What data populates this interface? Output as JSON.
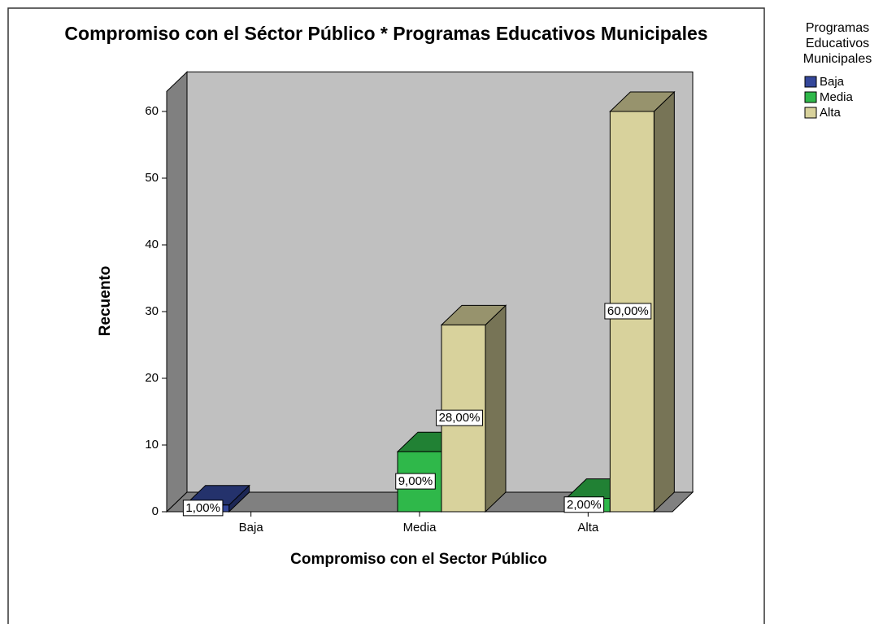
{
  "chart_data": {
    "type": "bar3d",
    "title": "Compromiso con el Séctor Público * Programas Educativos Municipales",
    "xlabel": "Compromiso con el Sector Público",
    "ylabel": "Recuento",
    "legend_title": "Programas Educativos Municipales",
    "legend": "right",
    "categories": [
      "Baja",
      "Media",
      "Alta"
    ],
    "series": [
      {
        "name": "Baja",
        "color": "#34479a",
        "values": [
          1,
          null,
          null
        ],
        "value_labels": [
          "1,00%",
          null,
          null
        ]
      },
      {
        "name": "Media",
        "color": "#2fb84a",
        "values": [
          null,
          9,
          2
        ],
        "value_labels": [
          null,
          "9,00%",
          "2,00%"
        ]
      },
      {
        "name": "Alta",
        "color": "#d8d29c",
        "values": [
          null,
          28,
          60
        ],
        "value_labels": [
          null,
          "28,00%",
          "60,00%"
        ]
      }
    ],
    "ylim": [
      0,
      63
    ],
    "yticks": [
      0,
      10,
      20,
      30,
      40,
      50,
      60
    ]
  }
}
